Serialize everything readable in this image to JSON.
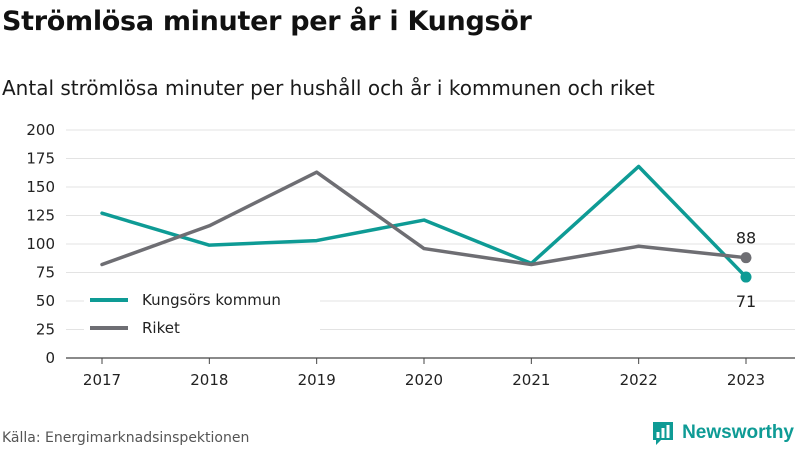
{
  "header": {
    "title": "Strömlösa minuter per år i Kungsör",
    "subtitle": "Antal strömlösa minuter per hushåll och år i kommunen och riket"
  },
  "footer": {
    "source": "Källa: Energimarknadsinspektionen",
    "brand": "Newsworthy",
    "brand_icon": "newsworthy-logo-icon"
  },
  "chart_data": {
    "type": "line",
    "x": [
      "2017",
      "2018",
      "2019",
      "2020",
      "2021",
      "2022",
      "2023"
    ],
    "series": [
      {
        "name": "Kungsörs kommun",
        "color": "#0e9b95",
        "values": [
          127,
          99,
          103,
          121,
          83,
          168,
          71
        ]
      },
      {
        "name": "Riket",
        "color": "#6e6e73",
        "values": [
          82,
          116,
          163,
          96,
          82,
          98,
          88
        ]
      }
    ],
    "end_labels": [
      "71",
      "88"
    ],
    "ylim": [
      0,
      200
    ],
    "yticks": [
      "0",
      "25",
      "50",
      "75",
      "100",
      "125",
      "150",
      "175",
      "200"
    ],
    "grid": true,
    "legend_position": "bottom-left"
  }
}
